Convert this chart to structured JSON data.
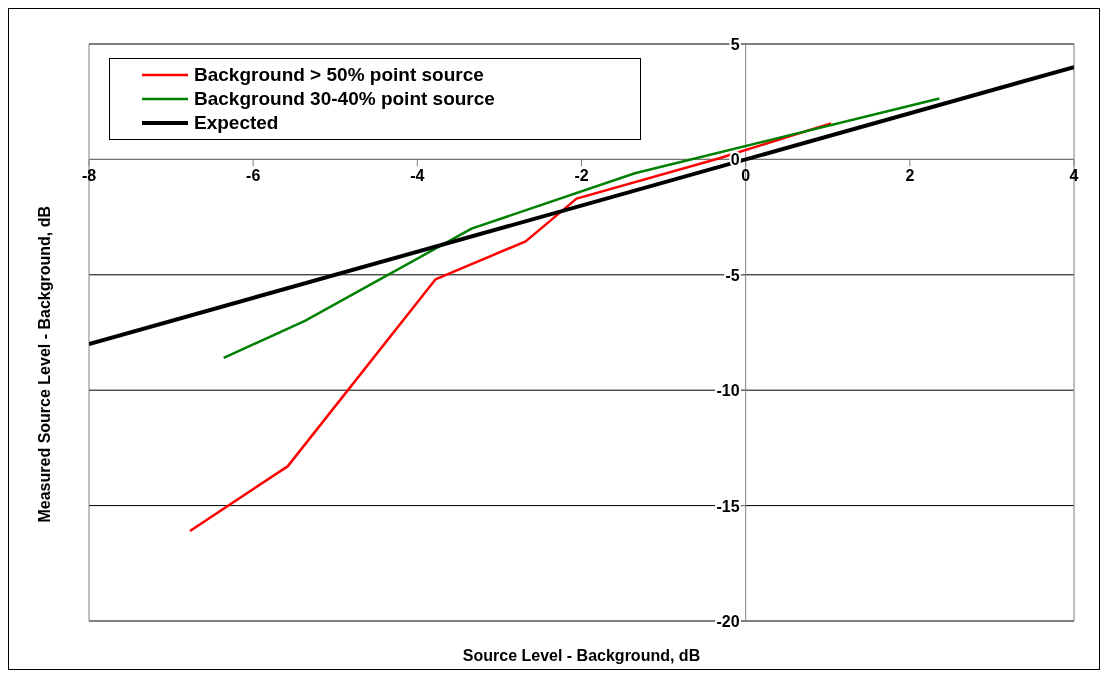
{
  "chart_data": {
    "type": "line",
    "xlabel": "Source Level - Background, dB",
    "ylabel": "Measured Source Level - Background, dB",
    "series": [
      {
        "name": "Background > 50% point source",
        "color": "#ff0000",
        "x": [
          -6.77,
          -5.58,
          -3.78,
          -2.68,
          -2.06,
          -0.33,
          1.04
        ],
        "values": [
          -16.1,
          -13.3,
          -5.2,
          -3.55,
          -1.7,
          0.04,
          1.56
        ]
      },
      {
        "name": "Background 30-40% point source",
        "color": "#008000",
        "x": [
          -6.36,
          -5.37,
          -3.34,
          -1.35,
          2.36
        ],
        "values": [
          -8.6,
          -7.0,
          -3.0,
          -0.6,
          2.64
        ]
      },
      {
        "name": "Expected",
        "color": "#000000",
        "x": [
          -8,
          4
        ],
        "values": [
          -8,
          4
        ]
      }
    ],
    "xlim": [
      -8,
      4
    ],
    "xticks": [
      -8,
      -6,
      -4,
      -2,
      0,
      2,
      4
    ],
    "ylim": [
      -20,
      5
    ],
    "yticks": [
      -20,
      -15,
      -10,
      -5,
      0,
      5
    ],
    "grid": "y",
    "legend": "top left",
    "marker": "none",
    "line_style": "solid"
  }
}
